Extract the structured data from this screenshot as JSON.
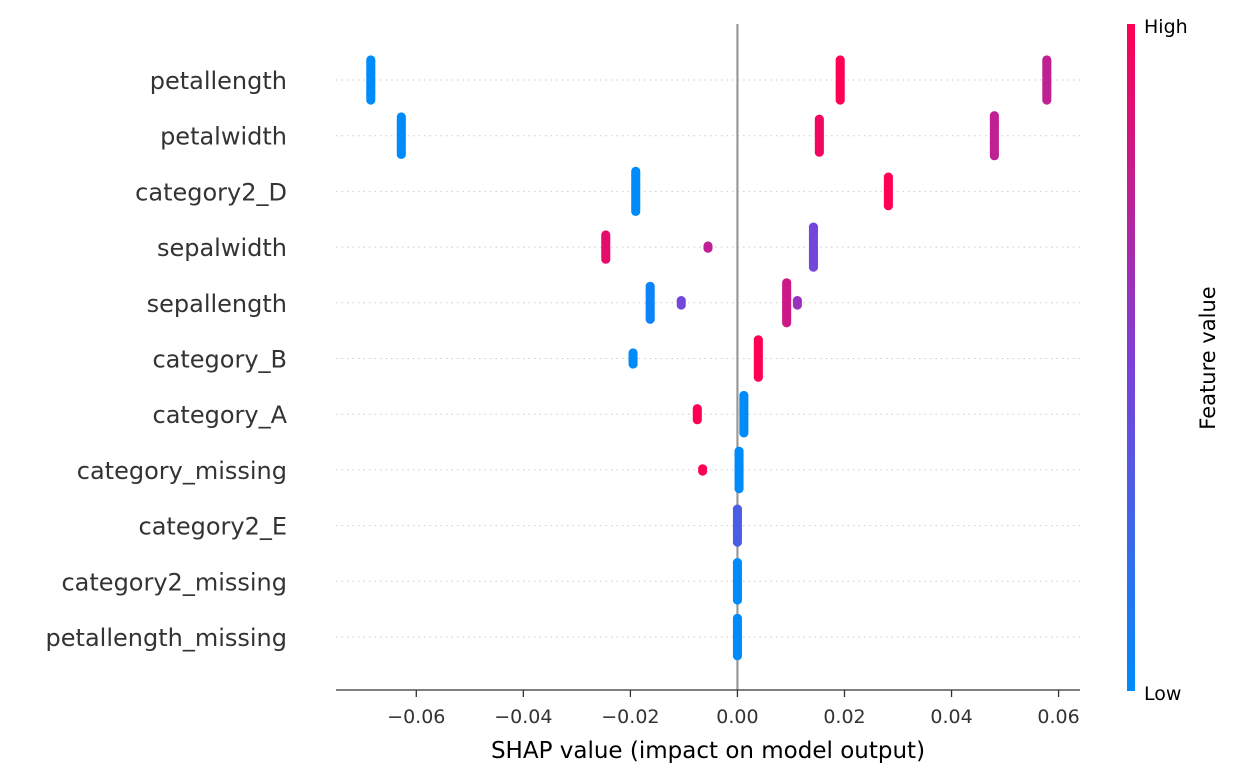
{
  "chart_data": {
    "type": "scatter",
    "subtype": "shap-beeswarm",
    "title": "",
    "xlabel": "SHAP value (impact on model output)",
    "ylabel": "",
    "xlim": [
      -0.075,
      0.064
    ],
    "xticks": [
      -0.06,
      -0.04,
      -0.02,
      0.0,
      0.02,
      0.04,
      0.06
    ],
    "xtick_labels": [
      "−0.06",
      "−0.04",
      "−0.02",
      "0.00",
      "0.02",
      "0.04",
      "0.06"
    ],
    "zero_line": 0.0,
    "grid": "dotted horizontal lines per feature",
    "features": [
      {
        "name": "petallength",
        "clusters": [
          {
            "x": -0.0685,
            "value": 0.0,
            "count": 20
          },
          {
            "x": 0.0192,
            "value": 1.0,
            "count": 20
          },
          {
            "x": 0.0578,
            "value": 0.75,
            "count": 20
          }
        ]
      },
      {
        "name": "petalwidth",
        "clusters": [
          {
            "x": -0.0628,
            "value": 0.0,
            "count": 18
          },
          {
            "x": 0.0153,
            "value": 0.95,
            "count": 16
          },
          {
            "x": 0.048,
            "value": 0.75,
            "count": 20
          }
        ]
      },
      {
        "name": "category2_D",
        "clusters": [
          {
            "x": -0.019,
            "value": 0.0,
            "count": 20
          },
          {
            "x": 0.0282,
            "value": 1.0,
            "count": 14
          }
        ]
      },
      {
        "name": "sepalwidth",
        "clusters": [
          {
            "x": -0.0246,
            "value": 0.9,
            "count": 12
          },
          {
            "x": -0.0055,
            "value": 0.75,
            "count": 2
          },
          {
            "x": 0.0142,
            "value": 0.45,
            "count": 20
          }
        ]
      },
      {
        "name": "sepallength",
        "clusters": [
          {
            "x": -0.0163,
            "value": 0.05,
            "count": 16
          },
          {
            "x": -0.0105,
            "value": 0.45,
            "count": 3
          },
          {
            "x": 0.0092,
            "value": 0.8,
            "count": 20
          },
          {
            "x": 0.0112,
            "value": 0.6,
            "count": 3
          }
        ]
      },
      {
        "name": "category_B",
        "clusters": [
          {
            "x": -0.0195,
            "value": 0.0,
            "count": 6
          },
          {
            "x": 0.0039,
            "value": 1.0,
            "count": 18
          }
        ]
      },
      {
        "name": "category_A",
        "clusters": [
          {
            "x": -0.0075,
            "value": 1.0,
            "count": 6
          },
          {
            "x": 0.0012,
            "value": 0.0,
            "count": 18
          }
        ]
      },
      {
        "name": "category_missing",
        "clusters": [
          {
            "x": -0.0065,
            "value": 1.0,
            "count": 2
          },
          {
            "x": 0.0003,
            "value": 0.0,
            "count": 18
          }
        ]
      },
      {
        "name": "category2_E",
        "clusters": [
          {
            "x": 0.0,
            "value": 0.3,
            "count": 16
          }
        ]
      },
      {
        "name": "category2_missing",
        "clusters": [
          {
            "x": 0.0,
            "value": 0.0,
            "count": 18
          }
        ]
      },
      {
        "name": "petallength_missing",
        "clusters": [
          {
            "x": 0.0,
            "value": 0.0,
            "count": 18
          }
        ]
      }
    ],
    "colorbar": {
      "label": "Feature value",
      "high_label": "High",
      "low_label": "Low",
      "low_color": "#008bfb",
      "mid_color": "#7f3fd6",
      "high_color": "#ff0052"
    }
  }
}
